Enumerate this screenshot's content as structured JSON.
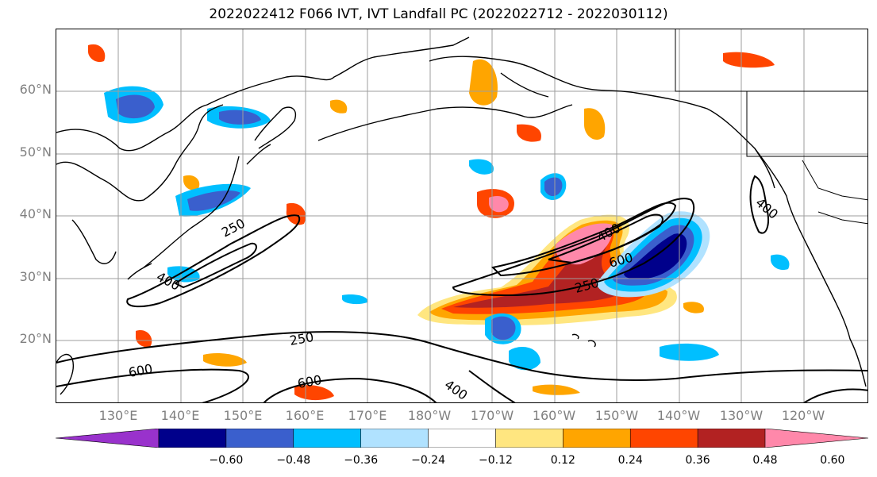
{
  "title": "2022022412 F066 IVT, IVT Landfall PC (2022022712 - 2022030112)",
  "latitude_labels": [
    "60°N",
    "50°N",
    "40°N",
    "30°N",
    "20°N"
  ],
  "longitude_labels": [
    "130°E",
    "140°E",
    "150°E",
    "160°E",
    "170°E",
    "180°W",
    "170°W",
    "160°W",
    "150°W",
    "140°W",
    "130°W",
    "120°W"
  ],
  "contour_labels": [
    "250",
    "400",
    "600",
    "250",
    "400",
    "600",
    "250",
    "400",
    "600",
    "400"
  ],
  "colorbar": {
    "colors": [
      "#9932cc",
      "#00008b",
      "#3a5fcd",
      "#00bfff",
      "#b0e2ff",
      "#ffffff",
      "#ffe680",
      "#ffa500",
      "#ff4500",
      "#b22222",
      "#ff88aa"
    ],
    "tick_labels": [
      "−0.60",
      "−0.48",
      "−0.36",
      "−0.24",
      "−0.12",
      "0.12",
      "0.24",
      "0.36",
      "0.48",
      "0.60"
    ]
  },
  "colors": {
    "coast": "#000000",
    "grid": "#9e9e9e",
    "contour": "#000000"
  }
}
